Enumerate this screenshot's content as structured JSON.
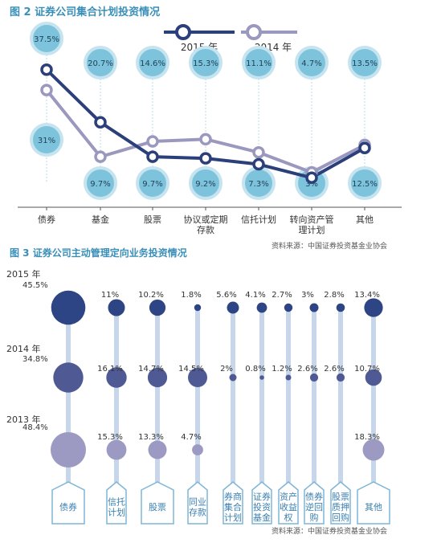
{
  "colors": {
    "title": "#3a8fb8",
    "line_2015": "#2b3f7a",
    "line_2014": "#9a98bf",
    "bubble_fill": "#7ec3dc",
    "bubble_stroke": "#c6e4ef",
    "axis": "#555555",
    "text": "#333333",
    "fig3_2015": "#2e4585",
    "fig3_2014": "#4f5a94",
    "fig3_2013": "#9c9ac2",
    "fig3_connector": "#c7d6eb",
    "fig3_label_border": "#7fb6d6",
    "fig3_label_text": "#3b7fb0"
  },
  "chart_data": [
    {
      "type": "line",
      "title": "图 2 证券公司集合计划投资情况",
      "categories": [
        "债券",
        "基金",
        "股票",
        "协议或定期存款",
        "信托计划",
        "转向资产管理计划",
        "其他"
      ],
      "category_lines": [
        [
          "债券"
        ],
        [
          "基金"
        ],
        [
          "股票"
        ],
        [
          "协议或定期",
          "存款"
        ],
        [
          "信托计划"
        ],
        [
          "转向资产管",
          "理计划"
        ],
        [
          "其他"
        ]
      ],
      "series": [
        {
          "name": "2015 年",
          "values": [
            37.5,
            20.7,
            9.7,
            9.2,
            7.3,
            3,
            12.5
          ],
          "labels": [
            "37.5%",
            "20.7%",
            "9.7%",
            "9.2%",
            "7.3%",
            "3%",
            "12.5%"
          ]
        },
        {
          "name": "2014 年",
          "values": [
            31,
            9.7,
            14.6,
            15.3,
            11.1,
            4.7,
            13.5
          ],
          "labels": [
            "31%",
            "9.7%",
            "14.6%",
            "15.3%",
            "11.1%",
            "4.7%",
            "13.5%"
          ]
        }
      ],
      "ylim": [
        0,
        40
      ],
      "source": "资料来源：中国证券投资基金业协会"
    },
    {
      "type": "scatter",
      "title": "图 3 证券公司主动管理定向业务投资情况",
      "categories": [
        "债券",
        "信托计划",
        "股票",
        "同业存款",
        "券商集合计划",
        "证券投资基金",
        "资产收益权",
        "债券逆回购",
        "股票质押回购",
        "其他"
      ],
      "category_lines": [
        [
          "债券"
        ],
        [
          "信托",
          "计划"
        ],
        [
          "股票"
        ],
        [
          "同业",
          "存款"
        ],
        [
          "券商",
          "集合",
          "计划"
        ],
        [
          "证券",
          "投资",
          "基金"
        ],
        [
          "资产",
          "收益",
          "权"
        ],
        [
          "债券",
          "逆回",
          "购"
        ],
        [
          "股票",
          "质押",
          "回购"
        ],
        [
          "其他"
        ]
      ],
      "series": [
        {
          "name": "2015 年",
          "values": [
            45.5,
            11,
            10.2,
            1.8,
            5.6,
            4.1,
            2.7,
            3,
            2.8,
            13.4
          ],
          "labels": [
            "45.5%",
            "11%",
            "10.2%",
            "1.8%",
            "5.6%",
            "4.1%",
            "2.7%",
            "3%",
            "2.8%",
            "13.4%"
          ]
        },
        {
          "name": "2014 年",
          "values": [
            34.8,
            16.1,
            14.7,
            14.5,
            2,
            0.8,
            1.2,
            2.6,
            2.6,
            10.7
          ],
          "labels": [
            "34.8%",
            "16.1%",
            "14.7%",
            "14.5%",
            "2%",
            "0.8%",
            "1.2%",
            "2.6%",
            "2.6%",
            "10.7%"
          ]
        },
        {
          "name": "2013 年",
          "values": [
            48.4,
            15.3,
            13.3,
            4.7,
            null,
            null,
            null,
            null,
            null,
            18.3
          ],
          "labels": [
            "48.4%",
            "15.3%",
            "13.3%",
            "4.7%",
            "",
            "",
            "",
            "",
            "",
            "18.3%"
          ]
        }
      ],
      "source": "资料来源：中国证券投资基金业协会"
    }
  ]
}
